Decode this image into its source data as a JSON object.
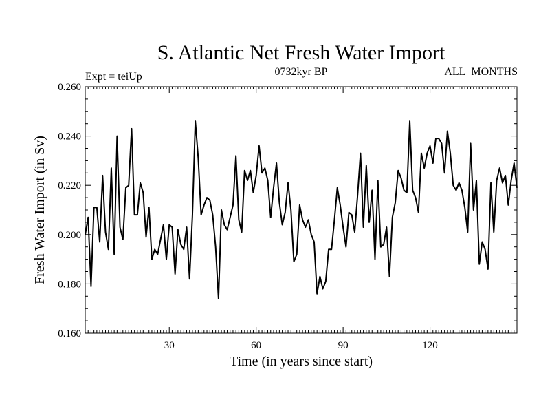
{
  "chart_data": {
    "type": "line",
    "title": "S. Atlantic Net Fresh Water Import",
    "subtitle_left": "Expt = teiUp",
    "subtitle_center": "0732kyr BP",
    "subtitle_right": "ALL_MONTHS",
    "xlabel": "Time (in years since start)",
    "ylabel": "Fresh Water Import (in Sv)",
    "xlim": [
      1,
      150
    ],
    "ylim": [
      0.16,
      0.26
    ],
    "x_ticks": [
      30,
      60,
      90,
      120
    ],
    "x_tick_labels": [
      "30",
      "60",
      "90",
      "120"
    ],
    "y_ticks": [
      0.16,
      0.18,
      0.2,
      0.22,
      0.24,
      0.26
    ],
    "y_tick_labels": [
      "0.160",
      "0.180",
      "0.200",
      "0.220",
      "0.240",
      "0.260"
    ],
    "grid": false,
    "series": [
      {
        "name": "Net Fresh Water Import",
        "x": [
          1,
          2,
          3,
          4,
          5,
          6,
          7,
          8,
          9,
          10,
          11,
          12,
          13,
          14,
          15,
          16,
          17,
          18,
          19,
          20,
          21,
          22,
          23,
          24,
          25,
          26,
          27,
          28,
          29,
          30,
          31,
          32,
          33,
          34,
          35,
          36,
          37,
          38,
          39,
          40,
          41,
          42,
          43,
          44,
          45,
          46,
          47,
          48,
          49,
          50,
          51,
          52,
          53,
          54,
          55,
          56,
          57,
          58,
          59,
          60,
          61,
          62,
          63,
          64,
          65,
          66,
          67,
          68,
          69,
          70,
          71,
          72,
          73,
          74,
          75,
          76,
          77,
          78,
          79,
          80,
          81,
          82,
          83,
          84,
          85,
          86,
          87,
          88,
          89,
          90,
          91,
          92,
          93,
          94,
          95,
          96,
          97,
          98,
          99,
          100,
          101,
          102,
          103,
          104,
          105,
          106,
          107,
          108,
          109,
          110,
          111,
          112,
          113,
          114,
          115,
          116,
          117,
          118,
          119,
          120,
          121,
          122,
          123,
          124,
          125,
          126,
          127,
          128,
          129,
          130,
          131,
          132,
          133,
          134,
          135,
          136,
          137,
          138,
          139,
          140,
          141,
          142,
          143,
          144,
          145,
          146,
          147,
          148,
          149,
          150
        ],
        "values": [
          0.2,
          0.207,
          0.179,
          0.211,
          0.211,
          0.197,
          0.224,
          0.201,
          0.194,
          0.227,
          0.192,
          0.24,
          0.203,
          0.198,
          0.219,
          0.22,
          0.243,
          0.208,
          0.208,
          0.221,
          0.217,
          0.199,
          0.211,
          0.19,
          0.194,
          0.192,
          0.198,
          0.204,
          0.19,
          0.204,
          0.203,
          0.184,
          0.202,
          0.196,
          0.194,
          0.203,
          0.182,
          0.208,
          0.246,
          0.231,
          0.208,
          0.212,
          0.215,
          0.214,
          0.208,
          0.195,
          0.174,
          0.21,
          0.204,
          0.202,
          0.207,
          0.212,
          0.232,
          0.206,
          0.201,
          0.226,
          0.222,
          0.226,
          0.217,
          0.224,
          0.236,
          0.225,
          0.227,
          0.222,
          0.207,
          0.219,
          0.229,
          0.213,
          0.204,
          0.209,
          0.221,
          0.21,
          0.189,
          0.192,
          0.212,
          0.206,
          0.203,
          0.206,
          0.2,
          0.197,
          0.176,
          0.183,
          0.178,
          0.181,
          0.194,
          0.194,
          0.206,
          0.219,
          0.212,
          0.203,
          0.195,
          0.209,
          0.208,
          0.201,
          0.216,
          0.233,
          0.203,
          0.228,
          0.205,
          0.218,
          0.19,
          0.222,
          0.195,
          0.196,
          0.203,
          0.183,
          0.207,
          0.213,
          0.226,
          0.223,
          0.218,
          0.217,
          0.246,
          0.218,
          0.215,
          0.209,
          0.233,
          0.227,
          0.233,
          0.236,
          0.229,
          0.239,
          0.239,
          0.237,
          0.225,
          0.242,
          0.233,
          0.22,
          0.218,
          0.221,
          0.218,
          0.211,
          0.201,
          0.237,
          0.21,
          0.222,
          0.188,
          0.197,
          0.194,
          0.186,
          0.221,
          0.201,
          0.222,
          0.227,
          0.221,
          0.224,
          0.212,
          0.222,
          0.229,
          0.219
        ]
      }
    ]
  }
}
